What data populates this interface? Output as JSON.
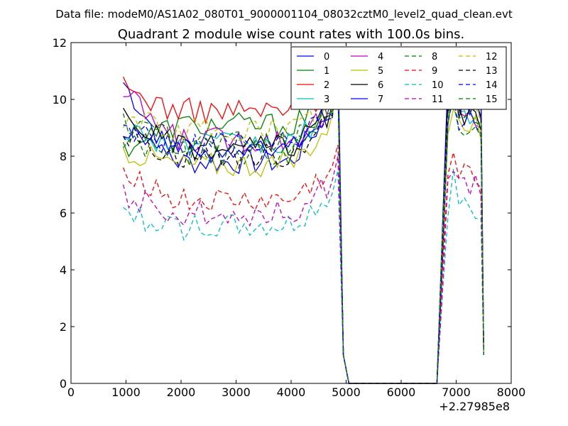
{
  "header": {
    "data_file": "Data file: modeM0/AS1A02_080T01_9000001104_08032cztM0_level2_quad_clean.evt"
  },
  "chart_data": {
    "type": "line",
    "title": "Quadrant 2 module wise count rates with 100.0s bins.",
    "xlabel": "",
    "ylabel": "",
    "x_offset_label": "+2.27985e8",
    "xlim": [
      0,
      8000
    ],
    "ylim": [
      0,
      12
    ],
    "xticks": [
      0,
      1000,
      2000,
      3000,
      4000,
      5000,
      6000,
      7000,
      8000
    ],
    "yticks": [
      0,
      2,
      4,
      6,
      8,
      10,
      12
    ],
    "legend_location": "top-right",
    "segments": {
      "seg1": {
        "start": 950,
        "end": 4750,
        "step": 100
      },
      "drop": [
        4850,
        4950,
        5050,
        6650,
        6750
      ],
      "seg2": {
        "start": 6850,
        "end": 7350,
        "step": 100
      },
      "tail": [
        7450,
        7500
      ]
    },
    "series": [
      {
        "name": "0",
        "color": "#0000ff",
        "dash": "",
        "base": 7.8,
        "start": 10.6,
        "level2": 9.7,
        "peak": 11.2
      },
      {
        "name": "1",
        "color": "#008000",
        "dash": "",
        "base": 9.1,
        "start": 8.3,
        "level2": 9.8,
        "peak": 10.6
      },
      {
        "name": "2",
        "color": "#ff0000",
        "dash": "",
        "base": 9.6,
        "start": 10.4,
        "level2": 10.3,
        "peak": 10.8
      },
      {
        "name": "3",
        "color": "#00bfbf",
        "dash": "",
        "base": 8.4,
        "start": 9.0,
        "level2": 9.5,
        "peak": 10.9
      },
      {
        "name": "4",
        "color": "#bf00bf",
        "dash": "",
        "base": 8.6,
        "start": 10.2,
        "level2": 9.4,
        "peak": 10.4
      },
      {
        "name": "5",
        "color": "#bfbf00",
        "dash": "",
        "base": 7.7,
        "start": 8.2,
        "level2": 9.0,
        "peak": 10.3
      },
      {
        "name": "6",
        "color": "#000000",
        "dash": "",
        "base": 8.3,
        "start": 9.4,
        "level2": 9.3,
        "peak": 10.6
      },
      {
        "name": "7",
        "color": "#0000ff",
        "dash": "",
        "base": 8.2,
        "start": 9.1,
        "level2": 10.9,
        "peak": 11.8
      },
      {
        "name": "8",
        "color": "#008000",
        "dash": "6,4",
        "base": 8.1,
        "start": 8.5,
        "level2": 9.1,
        "peak": 10.5
      },
      {
        "name": "9",
        "color": "#ff0000",
        "dash": "6,4",
        "base": 6.4,
        "start": 7.6,
        "level2": 7.3,
        "peak": 8.4
      },
      {
        "name": "10",
        "color": "#00bfbf",
        "dash": "6,4",
        "base": 5.5,
        "start": 6.0,
        "level2": 6.2,
        "peak": 7.5
      },
      {
        "name": "11",
        "color": "#bf00bf",
        "dash": "6,4",
        "base": 6.0,
        "start": 6.6,
        "level2": 7.0,
        "peak": 8.0
      },
      {
        "name": "12",
        "color": "#bfbf00",
        "dash": "6,4",
        "base": 8.9,
        "start": 9.3,
        "level2": 9.6,
        "peak": 10.5
      },
      {
        "name": "13",
        "color": "#000000",
        "dash": "6,4",
        "base": 8.0,
        "start": 8.8,
        "level2": 9.8,
        "peak": 10.7
      },
      {
        "name": "14",
        "color": "#0000ff",
        "dash": "6,4",
        "base": 8.4,
        "start": 9.0,
        "level2": 9.2,
        "peak": 10.6
      },
      {
        "name": "15",
        "color": "#008000",
        "dash": "6,4",
        "base": 8.5,
        "start": 9.2,
        "level2": 9.5,
        "peak": 10.8
      }
    ]
  }
}
